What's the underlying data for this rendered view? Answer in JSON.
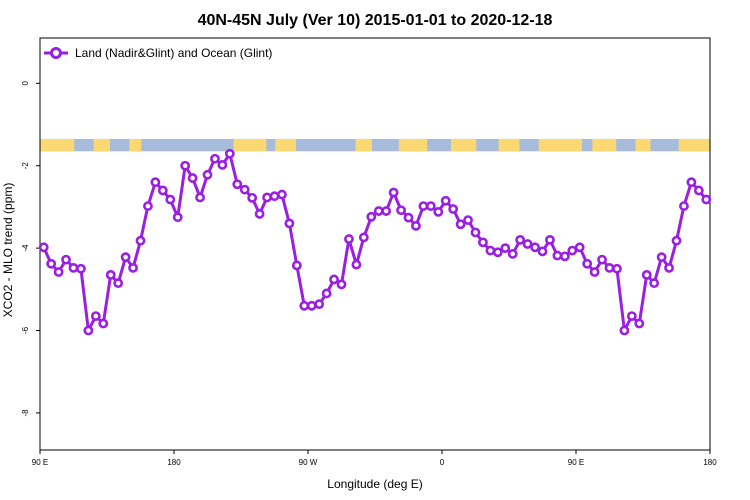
{
  "chart_data": {
    "type": "line",
    "title": "40N-45N July (Ver 10)   2015-01-01 to 2020-12-18",
    "xlabel": "Longitude (deg E)",
    "ylabel": "XCO2 - MLO trend (ppm)",
    "x_range": [
      90,
      540
    ],
    "ylim": [
      -8.9,
      1.1
    ],
    "x_ticks": [
      {
        "value": 90,
        "label": "90 E"
      },
      {
        "value": 180,
        "label": "180"
      },
      {
        "value": 270,
        "label": "90 W"
      },
      {
        "value": 360,
        "label": "0"
      },
      {
        "value": 450,
        "label": "90 E"
      },
      {
        "value": 540,
        "label": "180"
      }
    ],
    "y_ticks": [
      {
        "value": 0,
        "label": "0"
      },
      {
        "value": -2,
        "label": "-2"
      },
      {
        "value": -4,
        "label": "-4"
      },
      {
        "value": -6,
        "label": "-6"
      },
      {
        "value": -8,
        "label": "-8"
      }
    ],
    "legend_position": "top-left",
    "colors": {
      "series": "#9a1fe0",
      "land": "#fcd873",
      "ocean": "#a7bcdb"
    },
    "series": [
      {
        "name": "Land (Nadir&Glint) and Ocean (Glint)",
        "x": [
          92.5,
          97.5,
          102.5,
          107.5,
          112.5,
          117.5,
          122.5,
          127.5,
          132.5,
          137.5,
          142.5,
          147.5,
          152.5,
          157.5,
          162.5,
          167.5,
          172.5,
          177.5,
          182.5,
          187.5,
          192.5,
          197.5,
          202.5,
          207.5,
          212.5,
          217.5,
          222.5,
          227.5,
          232.5,
          237.5,
          242.5,
          247.5,
          252.5,
          257.5,
          262.5,
          267.5,
          272.5,
          277.5,
          282.5,
          287.5,
          292.5,
          297.5,
          302.5,
          307.5,
          312.5,
          317.5,
          322.5,
          327.5,
          332.5,
          337.5,
          342.5,
          347.5,
          352.5,
          357.5,
          362.5,
          367.5,
          372.5,
          377.5,
          382.5,
          387.5,
          392.5,
          397.5,
          402.5,
          407.5,
          412.5,
          417.5,
          422.5,
          427.5,
          432.5,
          437.5,
          442.5,
          447.5,
          452.5,
          457.5,
          462.5,
          467.5,
          472.5,
          477.5,
          482.5,
          487.5,
          492.5,
          497.5,
          502.5,
          507.5,
          512.5,
          517.5,
          522.5,
          527.5,
          532.5,
          537.5
        ],
        "y": [
          -3.98,
          -4.38,
          -4.58,
          -4.28,
          -4.48,
          -4.5,
          -6.0,
          -5.65,
          -5.83,
          -4.65,
          -4.85,
          -4.22,
          -4.48,
          -3.82,
          -2.98,
          -2.4,
          -2.6,
          -2.82,
          -3.25,
          -2.0,
          -2.3,
          -2.77,
          -2.22,
          -1.83,
          -1.98,
          -1.71,
          -2.45,
          -2.58,
          -2.78,
          -3.17,
          -2.77,
          -2.74,
          -2.7,
          -3.4,
          -4.42,
          -5.4,
          -5.4,
          -5.36,
          -5.1,
          -4.76,
          -4.88,
          -3.78,
          -4.4,
          -3.74,
          -3.24,
          -3.1,
          -3.1,
          -2.65,
          -3.08,
          -3.26,
          -3.46,
          -2.98,
          -2.98,
          -3.12,
          -2.85,
          -3.05,
          -3.42,
          -3.32,
          -3.62,
          -3.86,
          -4.06,
          -4.1,
          -4.0,
          -4.14,
          -3.8,
          -3.9,
          -3.98,
          -4.08,
          -3.8,
          -4.18,
          -4.2,
          -4.06,
          -3.98,
          -4.38,
          -4.58,
          -4.28,
          -4.48,
          -4.5,
          -6.0,
          -5.65,
          -5.83,
          -4.65,
          -4.85,
          -4.22,
          -4.48,
          -3.82,
          -2.98,
          -2.4,
          -2.6,
          -2.82
        ]
      }
    ],
    "surface_strip": {
      "y_range": [
        -1.35,
        -1.65
      ],
      "land_segments": [
        [
          90,
          113
        ],
        [
          126,
          137
        ],
        [
          150,
          158
        ],
        [
          220,
          242
        ],
        [
          248,
          262
        ],
        [
          302,
          313
        ],
        [
          331,
          350
        ],
        [
          366,
          383
        ],
        [
          398,
          412
        ],
        [
          425,
          454
        ],
        [
          461,
          477
        ],
        [
          490,
          500
        ],
        [
          519,
          540
        ]
      ]
    }
  }
}
